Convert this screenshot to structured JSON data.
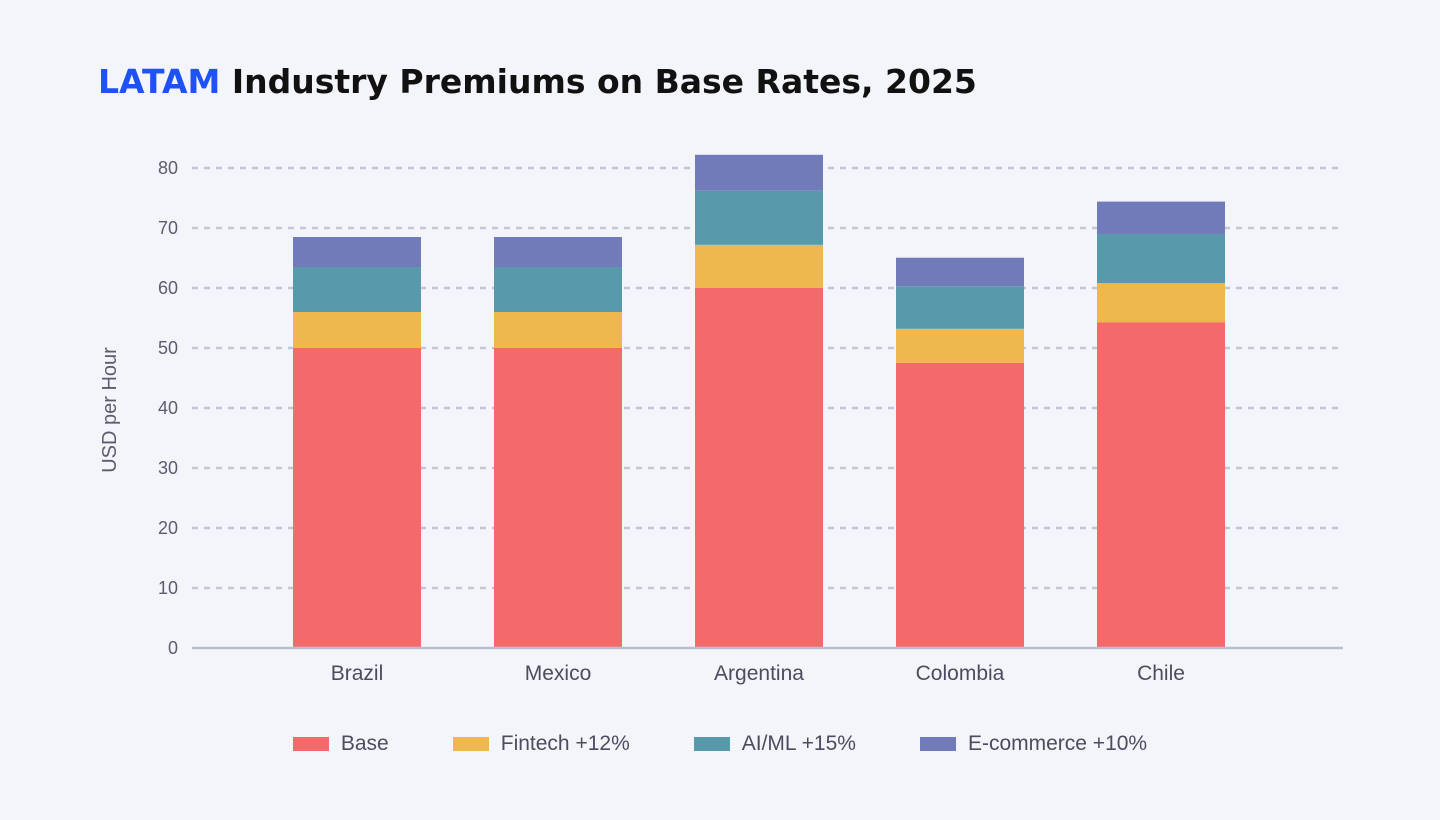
{
  "title": {
    "highlight": "LATAM",
    "rest": " Industry Premiums on Base Rates, 2025"
  },
  "chart_data": {
    "type": "bar",
    "stacked": true,
    "categories": [
      "Brazil",
      "Mexico",
      "Argentina",
      "Colombia",
      "Chile"
    ],
    "series": [
      {
        "name": "Base",
        "color": "#f46a6a",
        "values": [
          50,
          50,
          60,
          47.5,
          54.3
        ]
      },
      {
        "name": "Fintech +12%",
        "color": "#efb84f",
        "values": [
          6,
          6,
          7.2,
          5.7,
          6.5
        ]
      },
      {
        "name": "AI/ML +15%",
        "color": "#5899ac",
        "values": [
          7.5,
          7.5,
          9,
          7.1,
          8.2
        ]
      },
      {
        "name": "E-commerce +10%",
        "color": "#727bba",
        "values": [
          5,
          5,
          6,
          4.75,
          5.4
        ]
      }
    ],
    "ylabel": "USD per Hour",
    "xlabel": "",
    "ylim": [
      0,
      80
    ],
    "yticks": [
      "0",
      "10",
      "20",
      "30",
      "40",
      "50",
      "60",
      "70",
      "80"
    ],
    "grid": true,
    "legend": "bottom"
  }
}
